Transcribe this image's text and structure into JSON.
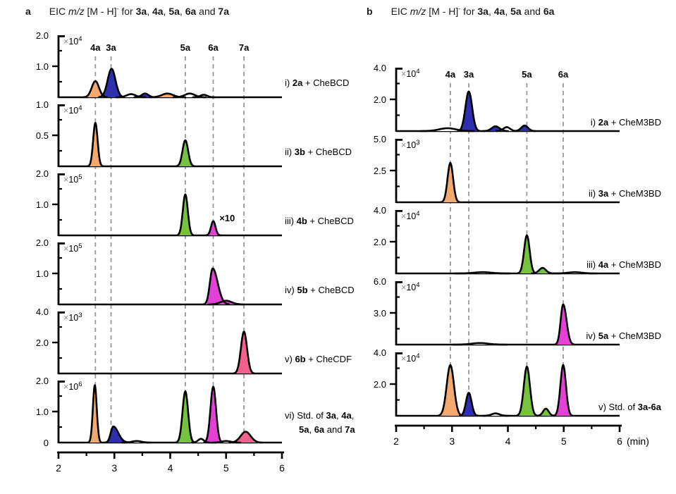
{
  "style": {
    "background": "#ffffff",
    "curve_color": "#000000",
    "dash_color": "#999999",
    "scale_cross_color": "#8a8a8a",
    "peak_colors": {
      "3a": "#2E2FAC",
      "4a": "#F3A96E",
      "5a": "#76C23F",
      "6a": "#E340D6",
      "7a": "#F2608E"
    }
  },
  "chart_data": [
    {
      "type": "line",
      "panel_label": "a",
      "title_parts": [
        {
          "t": "EIC "
        },
        {
          "t": "m/z",
          "i": true
        },
        {
          "t": " [M - H]"
        },
        {
          "t": "-",
          "sup": true
        },
        {
          "t": " for "
        },
        {
          "t": "3a",
          "b": true
        },
        {
          "t": ", "
        },
        {
          "t": "4a",
          "b": true
        },
        {
          "t": ", "
        },
        {
          "t": "5a",
          "b": true
        },
        {
          "t": ", "
        },
        {
          "t": "6a",
          "b": true
        },
        {
          "t": " and "
        },
        {
          "t": "7a",
          "b": true
        }
      ],
      "x_axis": {
        "min": 2,
        "max": 6,
        "major_ticks": [
          "2",
          "3",
          "4",
          "5",
          "6"
        ],
        "minor_step": 0.5,
        "unit": ""
      },
      "markers": [
        {
          "name": "4a",
          "x": 2.66,
          "color": "#F3A96E"
        },
        {
          "name": "3a",
          "x": 2.94,
          "color": "#2E2FAC"
        },
        {
          "name": "5a",
          "x": 4.27,
          "color": "#76C23F"
        },
        {
          "name": "6a",
          "x": 4.77,
          "color": "#E340D6"
        },
        {
          "name": "7a",
          "x": 5.32,
          "color": "#F2608E"
        }
      ],
      "traces": [
        {
          "label_lines": [
            [
              {
                "t": "i) "
              },
              {
                "t": "2a",
                "b": true
              },
              {
                "t": " + CheBCD"
              }
            ]
          ],
          "scale_base": "10",
          "scale_exp": "4",
          "y_top": 2.0,
          "y_ticks": [
            "2.0",
            "1.0"
          ],
          "peaks": [
            {
              "x": 2.66,
              "h": 0.52,
              "s": 0.065,
              "color": "#F3A96E"
            },
            {
              "x": 2.95,
              "h": 0.92,
              "s": 0.07,
              "color": "#2E2FAC"
            },
            {
              "x": 3.3,
              "h": 0.1,
              "s": 0.08,
              "color": null
            },
            {
              "x": 3.55,
              "h": 0.12,
              "s": 0.06,
              "color": "#2E2FAC"
            },
            {
              "x": 3.95,
              "h": 0.12,
              "s": 0.1,
              "color": "#F3A96E"
            },
            {
              "x": 4.35,
              "h": 0.12,
              "s": 0.09,
              "color": null
            },
            {
              "x": 4.6,
              "h": 0.08,
              "s": 0.06,
              "color": null
            }
          ]
        },
        {
          "label_lines": [
            [
              {
                "t": "ii) "
              },
              {
                "t": "3b",
                "b": true
              },
              {
                "t": " + CheBCD"
              }
            ]
          ],
          "scale_base": "10",
          "scale_exp": "4",
          "y_top": 1.0,
          "y_ticks": [
            "1.0",
            "0.5"
          ],
          "peaks": [
            {
              "x": 2.66,
              "h": 0.7,
              "s": 0.04,
              "color": "#F3A96E"
            },
            {
              "x": 4.27,
              "h": 0.42,
              "s": 0.05,
              "color": "#76C23F"
            }
          ]
        },
        {
          "label_lines": [
            [
              {
                "t": "iii) "
              },
              {
                "t": "4b",
                "b": true
              },
              {
                "t": " + CheBCD"
              }
            ]
          ],
          "scale_base": "10",
          "scale_exp": "5",
          "y_top": 2.0,
          "y_ticks": [
            "2.0",
            "1.0"
          ],
          "peaks": [
            {
              "x": 4.27,
              "h": 1.32,
              "s": 0.045,
              "color": "#76C23F"
            },
            {
              "x": 4.77,
              "h": 0.46,
              "s": 0.04,
              "color": "#E340D6"
            }
          ],
          "annotations": [
            {
              "text": "×10",
              "x": 4.88,
              "h": 0.45,
              "color": "#E340D6"
            }
          ]
        },
        {
          "label_lines": [
            [
              {
                "t": "iv) "
              },
              {
                "t": "5b",
                "b": true
              },
              {
                "t": " + CheBCD"
              }
            ]
          ],
          "scale_base": "10",
          "scale_exp": "5",
          "y_top": 2.0,
          "y_ticks": [
            "2.0",
            "1.0"
          ],
          "peaks": [
            {
              "x": 4.76,
              "h": 1.16,
              "s": 0.05,
              "sr": 0.09,
              "color": "#E340D6"
            },
            {
              "x": 5.0,
              "h": 0.12,
              "s": 0.1,
              "color": "#E340D6"
            }
          ]
        },
        {
          "label_lines": [
            [
              {
                "t": "v) "
              },
              {
                "t": "6b",
                "b": true
              },
              {
                "t": " + CheCDF"
              }
            ]
          ],
          "scale_base": "10",
          "scale_exp": "3",
          "y_top": 4.0,
          "y_ticks": [
            "4.0",
            "2.0"
          ],
          "peaks": [
            {
              "x": 5.32,
              "h": 2.7,
              "s": 0.055,
              "color": "#F2608E"
            }
          ]
        },
        {
          "label_lines": [
            [
              {
                "t": "vi) Std. of "
              },
              {
                "t": "3a",
                "b": true
              },
              {
                "t": ", "
              },
              {
                "t": "4a",
                "b": true
              },
              {
                "t": ","
              }
            ],
            [
              {
                "t": "5a",
                "b": true
              },
              {
                "t": ", "
              },
              {
                "t": "6a",
                "b": true
              },
              {
                "t": " and "
              },
              {
                "t": "7a",
                "b": true
              }
            ]
          ],
          "scale_base": "10",
          "scale_exp": "6",
          "y_top": 2.0,
          "y_ticks": [
            "2.0",
            "1.0"
          ],
          "y_zero_label": "0",
          "peaks": [
            {
              "x": 2.65,
              "h": 1.85,
              "s": 0.035,
              "color": "#F3A96E"
            },
            {
              "x": 2.98,
              "h": 0.52,
              "s": 0.045,
              "sr": 0.09,
              "color": "#2E2FAC"
            },
            {
              "x": 3.4,
              "h": 0.05,
              "s": 0.08,
              "color": null
            },
            {
              "x": 4.27,
              "h": 1.65,
              "s": 0.05,
              "color": "#76C23F"
            },
            {
              "x": 4.55,
              "h": 0.12,
              "s": 0.05,
              "color": null
            },
            {
              "x": 4.77,
              "h": 1.8,
              "s": 0.05,
              "color": "#E340D6"
            },
            {
              "x": 5.0,
              "h": 0.05,
              "s": 0.08,
              "color": null
            },
            {
              "x": 5.35,
              "h": 0.35,
              "s": 0.09,
              "color": "#F2608E"
            }
          ]
        }
      ]
    },
    {
      "type": "line",
      "panel_label": "b",
      "title_parts": [
        {
          "t": "EIC "
        },
        {
          "t": "m/z",
          "i": true
        },
        {
          "t": " [M - H]"
        },
        {
          "t": "-",
          "sup": true
        },
        {
          "t": " for "
        },
        {
          "t": "3a",
          "b": true
        },
        {
          "t": ", "
        },
        {
          "t": "4a",
          "b": true
        },
        {
          "t": ", "
        },
        {
          "t": "5a",
          "b": true
        },
        {
          "t": " and "
        },
        {
          "t": "6a",
          "b": true
        }
      ],
      "x_axis": {
        "min": 2,
        "max": 6,
        "major_ticks": [
          "2",
          "3",
          "4",
          "5",
          "6"
        ],
        "minor_step": 0.5,
        "unit": "(min)"
      },
      "markers": [
        {
          "name": "4a",
          "x": 2.97,
          "color": "#F3A96E"
        },
        {
          "name": "3a",
          "x": 3.3,
          "color": "#2E2FAC"
        },
        {
          "name": "5a",
          "x": 4.34,
          "color": "#76C23F"
        },
        {
          "name": "6a",
          "x": 4.99,
          "color": "#E340D6"
        }
      ],
      "traces": [
        {
          "label_lines": [
            [
              {
                "t": "i) "
              },
              {
                "t": "2a",
                "b": true
              },
              {
                "t": " + CheM3BD"
              }
            ]
          ],
          "scale_base": "10",
          "scale_exp": "4",
          "y_top": 4.0,
          "y_ticks": [
            "4.0",
            "2.0"
          ],
          "peaks": [
            {
              "x": 2.92,
              "h": 0.18,
              "s": 0.15,
              "color": null
            },
            {
              "x": 3.3,
              "h": 2.5,
              "s": 0.06,
              "color": "#2E2FAC"
            },
            {
              "x": 3.78,
              "h": 0.3,
              "s": 0.07,
              "color": "#2E2FAC"
            },
            {
              "x": 3.98,
              "h": 0.25,
              "s": 0.06,
              "color": null
            },
            {
              "x": 4.3,
              "h": 0.35,
              "s": 0.06,
              "color": "#2E2FAC"
            }
          ]
        },
        {
          "label_lines": [
            [
              {
                "t": "ii) "
              },
              {
                "t": "3a",
                "b": true
              },
              {
                "t": " + CheM3BD"
              }
            ]
          ],
          "scale_base": "10",
          "scale_exp": "3",
          "y_top": 5.0,
          "y_ticks": [
            "5.0",
            "2.5"
          ],
          "peaks": [
            {
              "x": 2.97,
              "h": 3.1,
              "s": 0.05,
              "color": "#F3A96E"
            }
          ]
        },
        {
          "label_lines": [
            [
              {
                "t": "iii) "
              },
              {
                "t": "4a",
                "b": true
              },
              {
                "t": " + CheM3BD"
              }
            ]
          ],
          "scale_base": "10",
          "scale_exp": "4",
          "y_top": 4.0,
          "y_ticks": [
            "4.0",
            "2.0"
          ],
          "peaks": [
            {
              "x": 3.55,
              "h": 0.08,
              "s": 0.15,
              "color": null
            },
            {
              "x": 4.34,
              "h": 2.4,
              "s": 0.05,
              "color": "#76C23F"
            },
            {
              "x": 4.62,
              "h": 0.35,
              "s": 0.06,
              "color": "#76C23F"
            },
            {
              "x": 5.2,
              "h": 0.08,
              "s": 0.12,
              "color": null
            }
          ]
        },
        {
          "label_lines": [
            [
              {
                "t": "iv) "
              },
              {
                "t": "5a",
                "b": true
              },
              {
                "t": " + CheM3BD"
              }
            ]
          ],
          "scale_base": "10",
          "scale_exp": "4",
          "y_top": 6.0,
          "y_ticks": [
            "6.0",
            "3.0"
          ],
          "peaks": [
            {
              "x": 3.5,
              "h": 0.15,
              "s": 0.15,
              "color": null
            },
            {
              "x": 4.99,
              "h": 3.8,
              "s": 0.045,
              "sr": 0.06,
              "color": "#E340D6"
            }
          ]
        },
        {
          "label_lines": [
            [
              {
                "t": "v) Std. of "
              },
              {
                "t": "3a-6a",
                "b": true
              }
            ]
          ],
          "scale_base": "10",
          "scale_exp": "4",
          "y_top": 4.0,
          "y_ticks": [
            "4.0",
            "2.0"
          ],
          "peaks": [
            {
              "x": 2.97,
              "h": 3.2,
              "s": 0.065,
              "color": "#F3A96E"
            },
            {
              "x": 3.3,
              "h": 1.45,
              "s": 0.05,
              "color": "#2E2FAC"
            },
            {
              "x": 3.78,
              "h": 0.15,
              "s": 0.07,
              "color": null
            },
            {
              "x": 4.34,
              "h": 3.1,
              "s": 0.055,
              "color": "#76C23F"
            },
            {
              "x": 4.68,
              "h": 0.45,
              "s": 0.05,
              "color": "#76C23F"
            },
            {
              "x": 4.99,
              "h": 3.2,
              "s": 0.05,
              "color": "#E340D6"
            }
          ]
        }
      ]
    }
  ]
}
